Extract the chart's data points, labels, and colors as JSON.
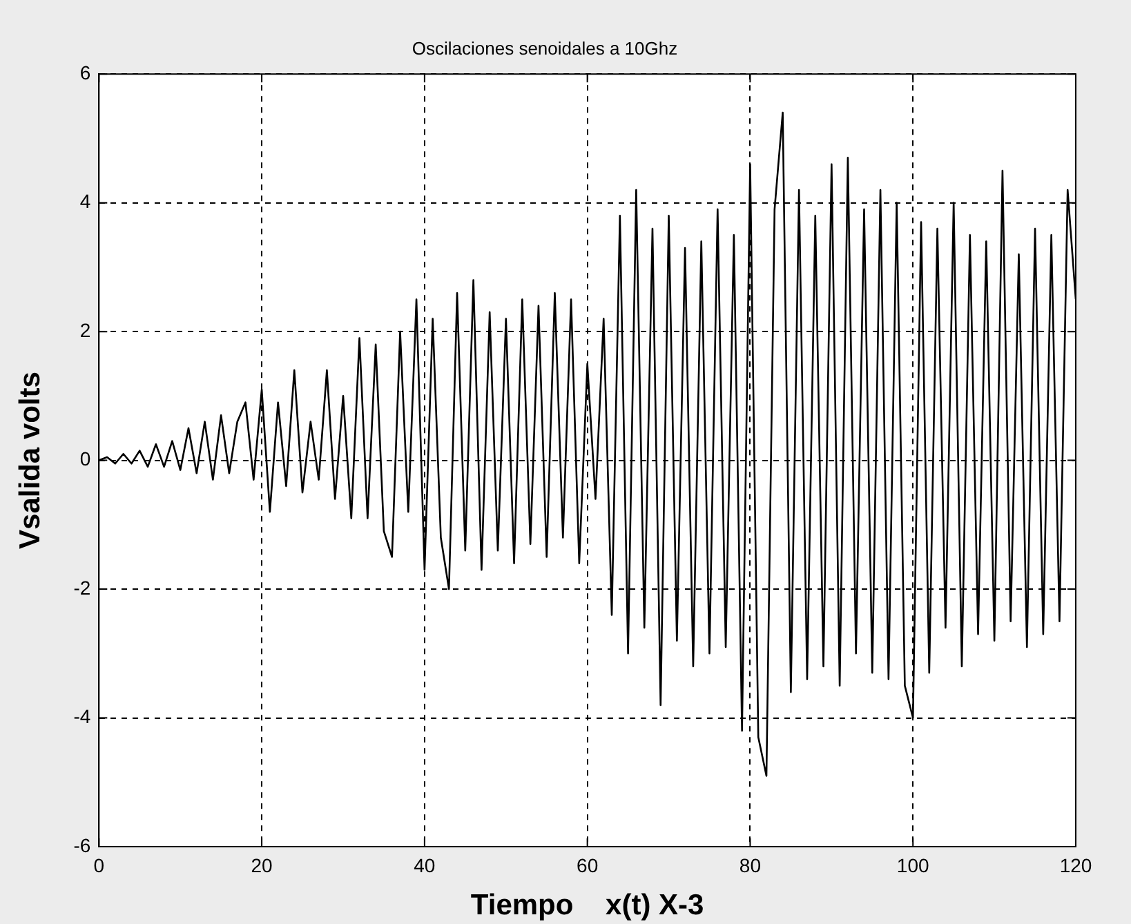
{
  "chart_data": {
    "type": "line",
    "title": "Oscilaciones senoidales a 10Ghz",
    "xlabel": "Tiempo    x(t) X-3",
    "ylabel": "Vsalida volts",
    "x": [
      0,
      1,
      2,
      3,
      4,
      5,
      6,
      7,
      8,
      9,
      10,
      11,
      12,
      13,
      14,
      15,
      16,
      17,
      18,
      19,
      20,
      21,
      22,
      23,
      24,
      25,
      26,
      27,
      28,
      29,
      30,
      31,
      32,
      33,
      34,
      35,
      36,
      37,
      38,
      39,
      40,
      41,
      42,
      43,
      44,
      45,
      46,
      47,
      48,
      49,
      50,
      51,
      52,
      53,
      54,
      55,
      56,
      57,
      58,
      59,
      60,
      61,
      62,
      63,
      64,
      65,
      66,
      67,
      68,
      69,
      70,
      71,
      72,
      73,
      74,
      75,
      76,
      77,
      78,
      79,
      80,
      81,
      82,
      83,
      84,
      85,
      86,
      87,
      88,
      89,
      90,
      91,
      92,
      93,
      94,
      95,
      96,
      97,
      98,
      99,
      100,
      101,
      102,
      103,
      104,
      105,
      106,
      107,
      108,
      109,
      110,
      111,
      112,
      113,
      114,
      115,
      116,
      117,
      118,
      119,
      120
    ],
    "series": [
      {
        "color": "#000000",
        "values": [
          0,
          0.05,
          -0.05,
          0.1,
          -0.05,
          0.15,
          -0.1,
          0.25,
          -0.1,
          0.3,
          -0.15,
          0.5,
          -0.2,
          0.6,
          -0.3,
          0.7,
          -0.2,
          0.6,
          0.9,
          -0.3,
          1.1,
          -0.8,
          0.9,
          -0.4,
          1.4,
          -0.5,
          0.6,
          -0.3,
          1.4,
          -0.6,
          1.0,
          -0.9,
          1.9,
          -0.9,
          1.8,
          -1.1,
          -1.5,
          2.0,
          -0.8,
          2.5,
          -1.7,
          2.2,
          -1.2,
          -2.0,
          2.6,
          -1.4,
          2.8,
          -1.7,
          2.3,
          -1.4,
          2.2,
          -1.6,
          2.5,
          -1.3,
          2.4,
          -1.5,
          2.6,
          -1.2,
          2.5,
          -1.6,
          1.5,
          -0.6,
          2.2,
          -2.4,
          3.8,
          -3.0,
          4.2,
          -2.6,
          3.6,
          -3.8,
          3.8,
          -2.8,
          3.3,
          -3.2,
          3.4,
          -3.0,
          3.9,
          -2.9,
          3.5,
          -4.2,
          4.6,
          -4.3,
          -4.9,
          3.9,
          5.4,
          -3.6,
          4.2,
          -3.4,
          3.8,
          -3.2,
          4.6,
          -3.5,
          4.7,
          -3.0,
          3.9,
          -3.3,
          4.2,
          -3.4,
          4.0,
          -3.5,
          -4.0,
          3.7,
          -3.3,
          3.6,
          -2.6,
          4.0,
          -3.2,
          3.5,
          -2.7,
          3.4,
          -2.8,
          4.5,
          -2.5,
          3.2,
          -2.9,
          3.6,
          -2.7,
          3.5,
          -2.5,
          4.2,
          2.5
        ]
      }
    ],
    "xlim": [
      0,
      120
    ],
    "xticks": [
      0,
      20,
      40,
      60,
      80,
      100,
      120
    ],
    "ylim": [
      -6,
      6
    ],
    "yticks": [
      -6,
      -4,
      -2,
      0,
      2,
      4,
      6
    ],
    "grid": true,
    "marker": "none",
    "line_style": "solid",
    "legend": false
  }
}
